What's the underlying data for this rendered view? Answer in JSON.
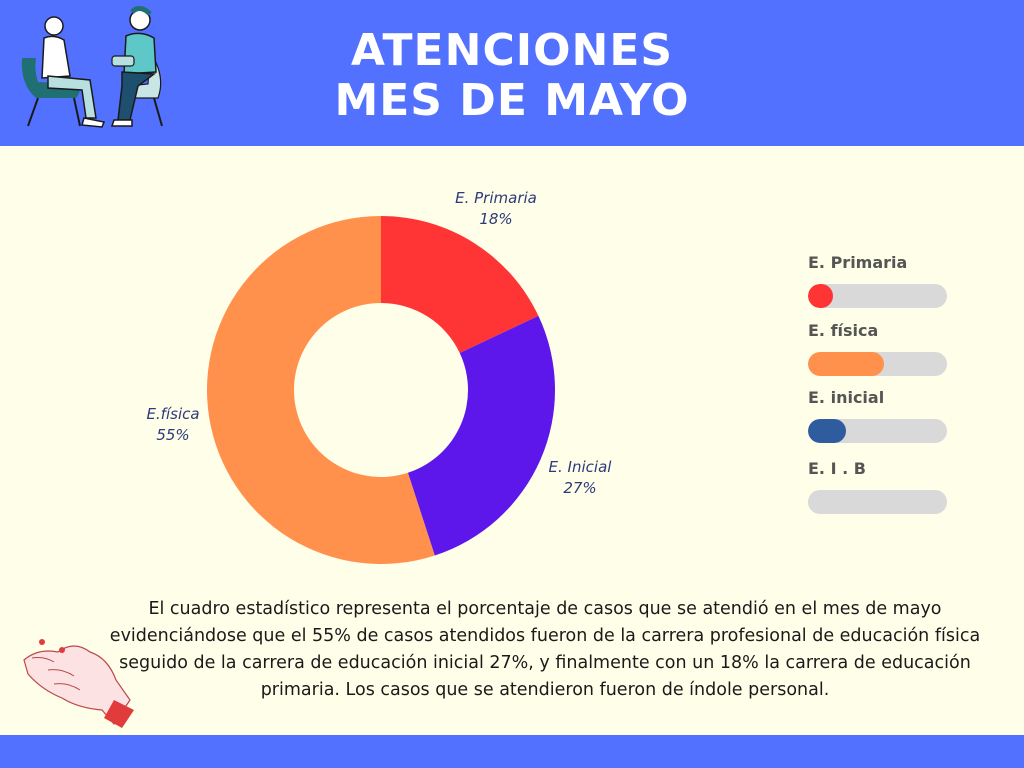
{
  "header": {
    "title_line1": "ATENCIONES",
    "title_line2": "MES DE MAYO"
  },
  "chart_data": {
    "type": "pie",
    "variant": "donut",
    "title": "ATENCIONES MES DE MAYO",
    "slices": [
      {
        "label": "E. Primaria",
        "value": 18,
        "value_label": "18%",
        "color": "#ff3434"
      },
      {
        "label": "E. Inicial",
        "value": 27,
        "value_label": "27%",
        "color": "#5e17eb"
      },
      {
        "label": "E.física",
        "value": 55,
        "value_label": "55%",
        "color": "#ff914d"
      }
    ]
  },
  "legend": {
    "items": [
      {
        "label": "E. Primaria",
        "fraction": 0.18,
        "color": "#ff3434"
      },
      {
        "label": "E. física",
        "fraction": 0.55,
        "color": "#ff914d"
      },
      {
        "label": "E. inicial",
        "fraction": 0.27,
        "color": "#2e5c9e"
      },
      {
        "label": "E. I . B",
        "fraction": 0,
        "color": "#2e5c9e"
      }
    ]
  },
  "description": "El cuadro estadístico representa el porcentaje de casos que se atendió en el mes de mayo evidenciándose que el 55% de casos atendidos fueron de la carrera profesional de educación física seguido de la carrera de educación inicial 27%, y finalmente con un 18% la carrera de educación primaria. Los casos que se atendieron fueron de índole personal.",
  "colors": {
    "header_bg": "#5271ff",
    "page_bg": "#fefee9",
    "bar_track": "#d9d9d9"
  },
  "icons": {
    "header_illustration": "two-people-talking-illustration",
    "footer_illustration": "hand-illustration"
  }
}
